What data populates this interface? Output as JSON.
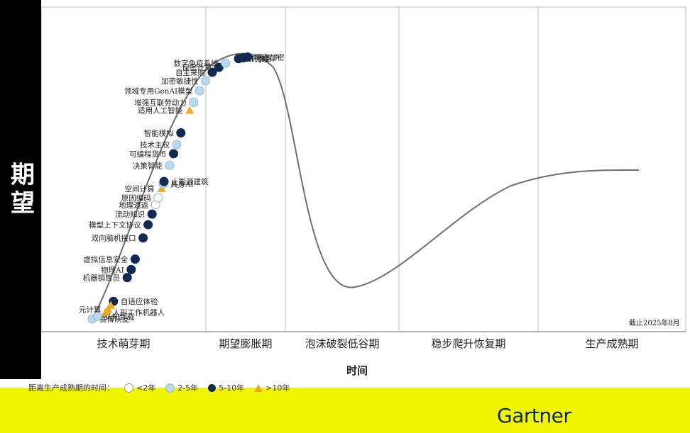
{
  "chart_data": {
    "type": "scatter",
    "title": "",
    "ylabel": "期望",
    "xlabel": "时间",
    "as_of": "截止2025年8月",
    "phases": [
      "技术萌芽期",
      "期望膨胀期",
      "泡沫破裂低谷期",
      "稳步爬升恢复期",
      "生产成熟期"
    ],
    "legend": {
      "title": "距离生产成熟期的时间：",
      "items": [
        {
          "label": "<2年",
          "color": "#ffffff"
        },
        {
          "label": "2-5年",
          "color": "#b9d9ec"
        },
        {
          "label": "5-10年",
          "color": "#102a52"
        },
        {
          "label": ">10年",
          "color": "#f0a81e"
        }
      ]
    },
    "brand": "Gartner",
    "points": [
      {
        "name": "赛博队友",
        "t": 0.0,
        "cat": "2-5年",
        "side": "right"
      },
      {
        "name": "认知卸载",
        "t": 0.02,
        "cat": "2-5年",
        "side": "right"
      },
      {
        "name": "人形工作机器人",
        "t": 0.05,
        "cat": ">10年",
        "side": "right"
      },
      {
        "name": "元计算",
        "t": 0.06,
        "cat": ">10年",
        "side": "left"
      },
      {
        "name": "自适应体验",
        "t": 0.08,
        "cat": "5-10年",
        "side": "right"
      },
      {
        "name": "",
        "t": 0.07,
        "cat": ">10年",
        "side": "none"
      },
      {
        "name": "机器销售员",
        "t": 0.14,
        "cat": "5-10年",
        "side": "left"
      },
      {
        "name": "物理AI",
        "t": 0.16,
        "cat": "5-10年",
        "side": "left"
      },
      {
        "name": "虚拟信息安全",
        "t": 0.18,
        "cat": "5-10年",
        "side": "left"
      },
      {
        "name": "双向脑机接口",
        "t": 0.22,
        "cat": "5-10年",
        "side": "left"
      },
      {
        "name": "模型上下文协议",
        "t": 0.245,
        "cat": "5-10年",
        "side": "left"
      },
      {
        "name": "流动知识",
        "t": 0.265,
        "cat": "5-10年",
        "side": "left"
      },
      {
        "name": "地理遗返",
        "t": 0.285,
        "cat": "<2年",
        "side": "left"
      },
      {
        "name": "原因编码",
        "t": 0.3,
        "cat": "<2年",
        "side": "left"
      },
      {
        "name": "空间计算",
        "t": 0.32,
        "cat": ">10年",
        "side": "left"
      },
      {
        "name": "具身AI",
        "t": 0.33,
        "cat": "2-5年",
        "side": "right"
      },
      {
        "name": "止能源建筑",
        "t": 0.335,
        "cat": "5-10年",
        "side": "right"
      },
      {
        "name": "决策智能",
        "t": 0.37,
        "cat": "2-5年",
        "side": "left"
      },
      {
        "name": "可编程货币",
        "t": 0.395,
        "cat": "5-10年",
        "side": "left"
      },
      {
        "name": "技术主权",
        "t": 0.415,
        "cat": "2-5年",
        "side": "left"
      },
      {
        "name": "智能模拟",
        "t": 0.44,
        "cat": "5-10年",
        "side": "left"
      },
      {
        "name": "适用人工智能",
        "t": 0.49,
        "cat": ">10年",
        "side": "left"
      },
      {
        "name": "增强互联劳动力",
        "t": 0.51,
        "cat": "2-5年",
        "side": "left"
      },
      {
        "name": "领域专用GenAI模型",
        "t": 0.54,
        "cat": "2-5年",
        "side": "left"
      },
      {
        "name": "加密敏捷性",
        "t": 0.57,
        "cat": "2-5年",
        "side": "left"
      },
      {
        "name": "自主采购",
        "t": 0.6,
        "cat": "5-10年",
        "side": "left"
      },
      {
        "name": "保密计算",
        "t": 0.625,
        "cat": "5-10年",
        "side": "left"
      },
      {
        "name": "数字免疫系统",
        "t": 0.65,
        "cat": "2-5年",
        "side": "left"
      },
      {
        "name": "AI代理",
        "t": 0.7,
        "cat": "5-10年",
        "side": "right"
      },
      {
        "name": "机器客户",
        "t": 0.72,
        "cat": "5-10年",
        "side": "right"
      },
      {
        "name": "同态加密",
        "t": 0.74,
        "cat": "5-10年",
        "side": "right"
      }
    ],
    "grid": true
  }
}
